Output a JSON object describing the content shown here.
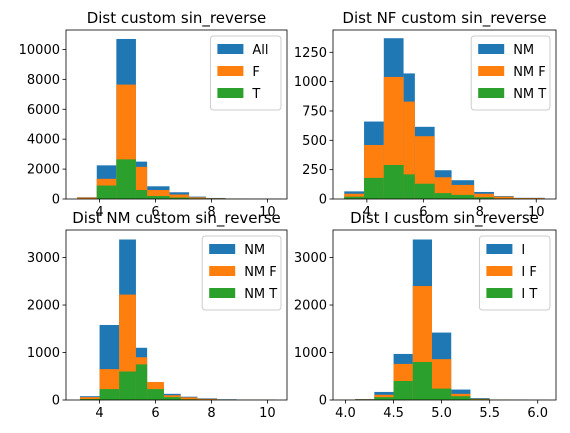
{
  "colors": {
    "blue": "#1f77b4",
    "orange": "#ff7f0e",
    "green": "#2ca02c"
  },
  "chart_data": [
    {
      "type": "bar",
      "title": "Dist custom sin_reverse",
      "xlim": [
        2.8,
        10.7
      ],
      "ylim": [
        0,
        11300
      ],
      "xticks": [
        4,
        6,
        8,
        10
      ],
      "yticks": [
        0,
        2000,
        4000,
        6000,
        8000,
        10000
      ],
      "legend_loc": "top-right",
      "bin_edges": [
        3.2,
        3.9,
        4.6,
        5.3,
        5.7,
        6.5,
        7.2,
        7.8,
        8.5,
        9.2,
        10.5
      ],
      "series": [
        {
          "name": "All",
          "color": "#1f77b4",
          "values": [
            120,
            2250,
            10700,
            2500,
            850,
            450,
            160,
            70,
            30,
            15
          ]
        },
        {
          "name": "F",
          "color": "#ff7f0e",
          "values": [
            100,
            1350,
            7650,
            2150,
            600,
            300,
            110,
            50,
            20,
            10
          ]
        },
        {
          "name": "T",
          "color": "#2ca02c",
          "values": [
            20,
            900,
            2650,
            600,
            200,
            100,
            40,
            20,
            10,
            5
          ]
        }
      ]
    },
    {
      "type": "bar",
      "title": "Dist NF custom sin_reverse",
      "xlim": [
        2.8,
        10.7
      ],
      "ylim": [
        0,
        1440
      ],
      "xticks": [
        4,
        6,
        8,
        10
      ],
      "yticks": [
        0,
        250,
        500,
        750,
        1000,
        1250
      ],
      "legend_loc": "top-right",
      "bin_edges": [
        3.2,
        3.9,
        4.6,
        5.3,
        5.7,
        6.4,
        7.0,
        7.8,
        8.5,
        9.2,
        10.3
      ],
      "series": [
        {
          "name": "NM",
          "color": "#1f77b4",
          "values": [
            65,
            660,
            1370,
            1070,
            615,
            245,
            160,
            60,
            25,
            10
          ]
        },
        {
          "name": "NM F",
          "color": "#ff7f0e",
          "values": [
            45,
            460,
            1040,
            830,
            535,
            185,
            120,
            45,
            20,
            8
          ]
        },
        {
          "name": "NM T",
          "color": "#2ca02c",
          "values": [
            20,
            180,
            290,
            210,
            130,
            50,
            35,
            15,
            5,
            2
          ]
        }
      ]
    },
    {
      "type": "bar",
      "title": "Dist NM custom sin_reverse",
      "xlim": [
        2.8,
        10.7
      ],
      "ylim": [
        0,
        3580
      ],
      "xticks": [
        4,
        6,
        8,
        10
      ],
      "yticks": [
        0,
        1000,
        2000,
        3000
      ],
      "legend_loc": "top-right",
      "bin_edges": [
        3.3,
        4.0,
        4.7,
        5.3,
        5.7,
        6.3,
        6.9,
        7.5,
        8.2,
        8.9,
        10.3
      ],
      "series": [
        {
          "name": "NM",
          "color": "#1f77b4",
          "values": [
            80,
            1580,
            3380,
            1100,
            330,
            130,
            70,
            35,
            15,
            5
          ]
        },
        {
          "name": "NM F",
          "color": "#ff7f0e",
          "values": [
            60,
            650,
            2220,
            900,
            380,
            100,
            55,
            25,
            10,
            4
          ]
        },
        {
          "name": "NM T",
          "color": "#2ca02c",
          "values": [
            20,
            230,
            600,
            750,
            230,
            60,
            15,
            10,
            5,
            1
          ]
        }
      ]
    },
    {
      "type": "bar",
      "title": "Dist I custom sin_reverse",
      "xlim": [
        3.87,
        6.19
      ],
      "ylim": [
        0,
        3580
      ],
      "xticks": [
        4.0,
        4.5,
        5.0,
        5.5,
        6.0
      ],
      "yticks": [
        0,
        1000,
        2000,
        3000
      ],
      "legend_loc": "top-right",
      "bin_edges": [
        3.9,
        4.1,
        4.3,
        4.5,
        4.7,
        4.9,
        5.1,
        5.3,
        5.5,
        5.7,
        5.9,
        6.1
      ],
      "series": [
        {
          "name": "I",
          "color": "#1f77b4",
          "values": [
            5,
            20,
            170,
            970,
            3380,
            1420,
            220,
            40,
            10,
            5,
            2
          ]
        },
        {
          "name": "I F",
          "color": "#ff7f0e",
          "values": [
            4,
            15,
            110,
            760,
            2400,
            860,
            130,
            25,
            8,
            3,
            1
          ]
        },
        {
          "name": "I T",
          "color": "#2ca02c",
          "values": [
            1,
            5,
            60,
            400,
            800,
            240,
            80,
            15,
            3,
            2,
            1
          ]
        }
      ]
    }
  ]
}
